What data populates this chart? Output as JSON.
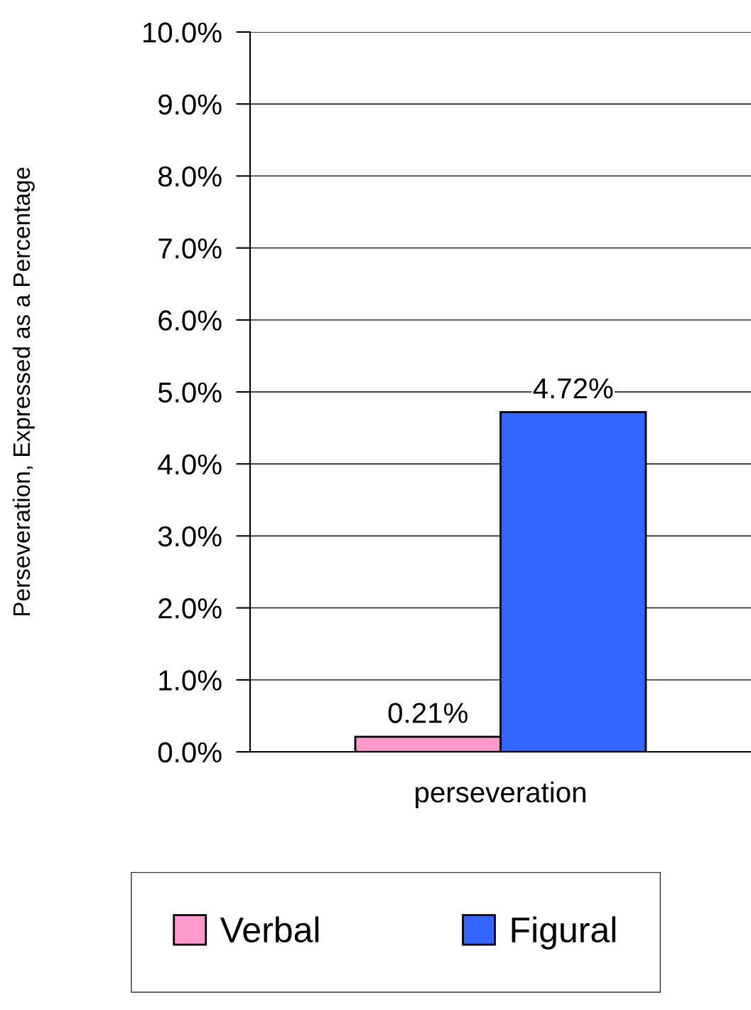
{
  "chart_data": {
    "type": "bar",
    "ylabel": "Perseveration, Expressed as a Percentage",
    "categories": [
      "perseveration"
    ],
    "series": [
      {
        "name": "Verbal",
        "color": "#ff99cc",
        "values": [
          0.21
        ],
        "value_labels": [
          "0.21%"
        ]
      },
      {
        "name": "Figural",
        "color": "#3366ff",
        "values": [
          4.72
        ],
        "value_labels": [
          "4.72%"
        ]
      }
    ],
    "ylim": [
      0,
      10
    ],
    "yticks": [
      {
        "value": 0,
        "label": "0.0%"
      },
      {
        "value": 1,
        "label": "1.0%"
      },
      {
        "value": 2,
        "label": "2.0%"
      },
      {
        "value": 3,
        "label": "3.0%"
      },
      {
        "value": 4,
        "label": "4.0%"
      },
      {
        "value": 5,
        "label": "5.0%"
      },
      {
        "value": 6,
        "label": "6.0%"
      },
      {
        "value": 7,
        "label": "7.0%"
      },
      {
        "value": 8,
        "label": "8.0%"
      },
      {
        "value": 9,
        "label": "9.0%"
      },
      {
        "value": 10,
        "label": "10.0%"
      }
    ],
    "grid": "y",
    "legend": "bottom"
  }
}
